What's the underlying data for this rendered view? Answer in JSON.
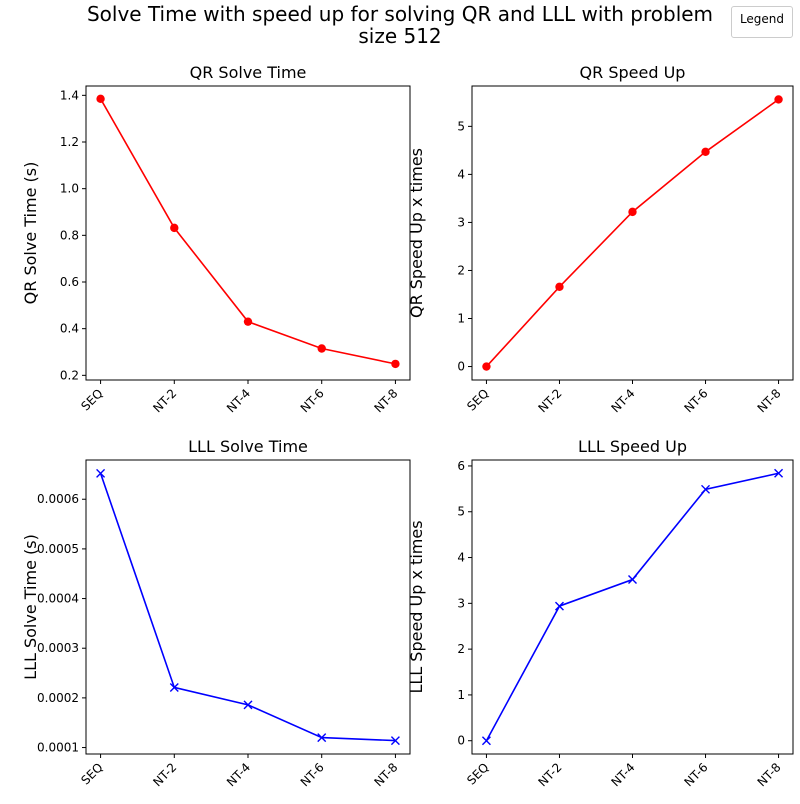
{
  "figure_title_line1": "Solve Time with speed up for solving QR and LLL with problem",
  "figure_title_line2": "size 512",
  "legend_label": "Legend",
  "chart_data": [
    {
      "type": "line",
      "title": "QR Solve Time",
      "xlabel": "",
      "ylabel": "QR Solve Time (s)",
      "categories": [
        "SEQ",
        "NT-2",
        "NT-4",
        "NT-6",
        "NT-8"
      ],
      "values": [
        1.385,
        0.832,
        0.43,
        0.315,
        0.249
      ],
      "ylim": [
        0.18,
        1.44
      ],
      "yticks": [
        0.2,
        0.4,
        0.6,
        0.8,
        1.0,
        1.2,
        1.4
      ],
      "ytick_labels": [
        "0.2",
        "0.4",
        "0.6",
        "0.8",
        "1.0",
        "1.2",
        "1.4"
      ],
      "color": "#ff0000",
      "marker": "circle"
    },
    {
      "type": "line",
      "title": "QR Speed Up",
      "xlabel": "",
      "ylabel": "QR Speed Up x times",
      "categories": [
        "SEQ",
        "NT-2",
        "NT-4",
        "NT-6",
        "NT-8"
      ],
      "values": [
        0,
        1.66,
        3.22,
        4.47,
        5.56
      ],
      "ylim": [
        -0.28,
        5.84
      ],
      "yticks": [
        0,
        1,
        2,
        3,
        4,
        5
      ],
      "ytick_labels": [
        "0",
        "1",
        "2",
        "3",
        "4",
        "5"
      ],
      "color": "#ff0000",
      "marker": "circle"
    },
    {
      "type": "line",
      "title": "LLL Solve Time",
      "xlabel": "",
      "ylabel": "LLL  Solve Time (s)",
      "categories": [
        "SEQ",
        "NT-2",
        "NT-4",
        "NT-6",
        "NT-8"
      ],
      "values": [
        0.000652,
        0.000221,
        0.000186,
        0.00012,
        0.000114
      ],
      "ylim": [
        8.7e-05,
        0.000679
      ],
      "yticks": [
        0.0001,
        0.0002,
        0.0003,
        0.0004,
        0.0005,
        0.0006
      ],
      "ytick_labels": [
        "0.0001",
        "0.0002",
        "0.0003",
        "0.0004",
        "0.0005",
        "0.0006"
      ],
      "color": "#0000ff",
      "marker": "x"
    },
    {
      "type": "line",
      "title": "LLL Speed Up",
      "xlabel": "",
      "ylabel": "LLL Speed Up x times",
      "categories": [
        "SEQ",
        "NT-2",
        "NT-4",
        "NT-6",
        "NT-8"
      ],
      "values": [
        0,
        2.94,
        3.52,
        5.49,
        5.84
      ],
      "ylim": [
        -0.29,
        6.13
      ],
      "yticks": [
        0,
        1,
        2,
        3,
        4,
        5,
        6
      ],
      "ytick_labels": [
        "0",
        "1",
        "2",
        "3",
        "4",
        "5",
        "6"
      ],
      "color": "#0000ff",
      "marker": "x"
    }
  ]
}
